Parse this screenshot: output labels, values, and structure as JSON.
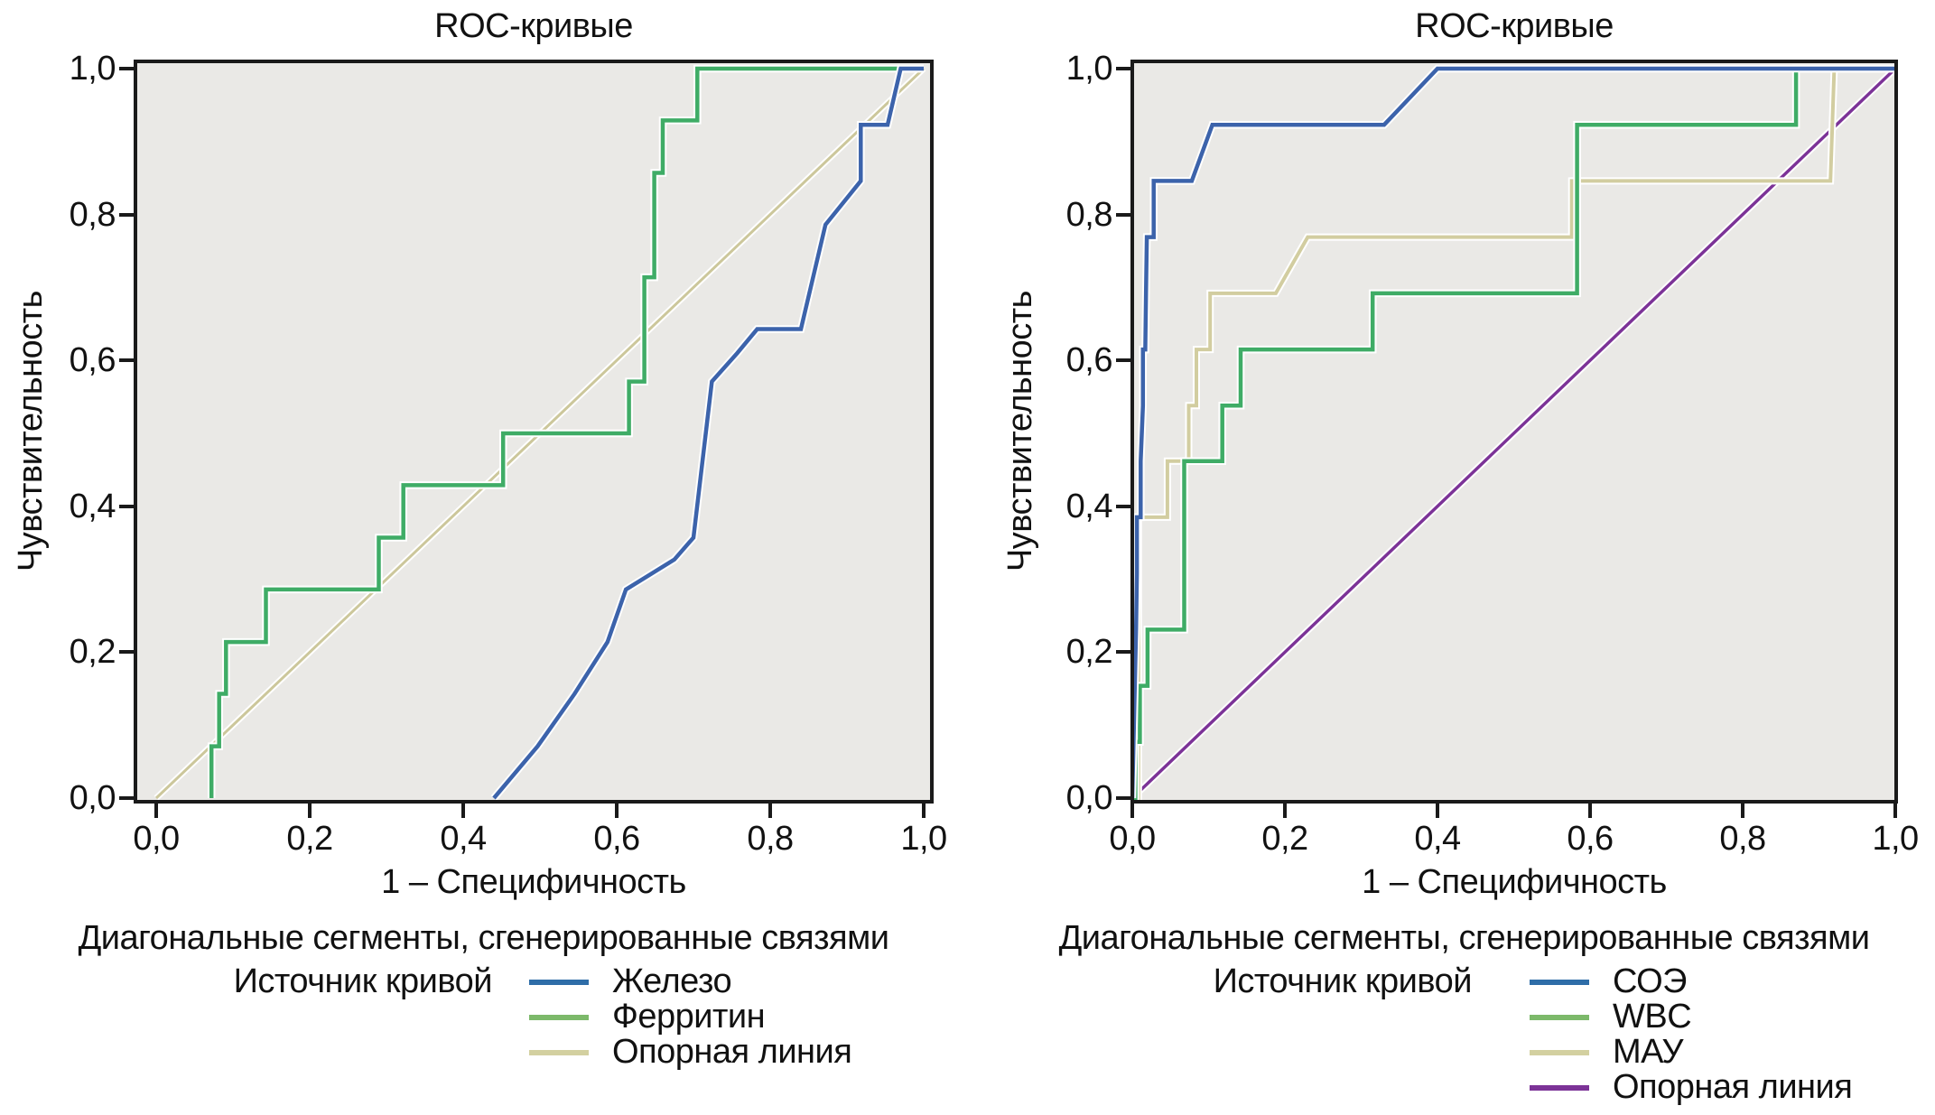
{
  "colors": {
    "page_background": "#FFFFFF",
    "plot_background": "#EAE9E6",
    "frame": "#1A1A1A",
    "text": "#111111",
    "curve_halo": "#FFFFFF"
  },
  "chart_data": [
    {
      "type": "line",
      "variant": "roc-curve",
      "title": "ROC-кривые",
      "xlabel": "1 – Специфичность",
      "ylabel": "Чувствительность",
      "caption": "Диагональные сегменты, сгенерированные связями",
      "legend_title": "Источник кривой",
      "legend_position": "bottom",
      "grid": false,
      "xlim": [
        0,
        1
      ],
      "ylim": [
        0,
        1
      ],
      "xticks": [
        "0,0",
        "0,2",
        "0,4",
        "0,6",
        "0,8",
        "1,0"
      ],
      "yticks": [
        "0,0",
        "0,2",
        "0,4",
        "0,6",
        "0,8",
        "1,0"
      ],
      "series": [
        {
          "name": "Железо",
          "color": "#3C63AB",
          "swatch": "#2E6DA8",
          "width": 4.5,
          "points": [
            [
              0.44,
              0
            ],
            [
              0.497,
              0.071
            ],
            [
              0.545,
              0.143
            ],
            [
              0.588,
              0.214
            ],
            [
              0.612,
              0.286
            ],
            [
              0.675,
              0.327
            ],
            [
              0.7,
              0.357
            ],
            [
              0.724,
              0.571
            ],
            [
              0.757,
              0.61
            ],
            [
              0.783,
              0.643
            ],
            [
              0.84,
              0.643
            ],
            [
              0.872,
              0.786
            ],
            [
              0.918,
              0.846
            ],
            [
              0.918,
              0.923
            ],
            [
              0.953,
              0.923
            ],
            [
              0.97,
              1
            ],
            [
              1,
              1
            ]
          ]
        },
        {
          "name": "Ферритин",
          "color": "#3FAC66",
          "swatch": "#7CB96A",
          "width": 4.5,
          "points": [
            [
              0.072,
              0
            ],
            [
              0.072,
              0.071
            ],
            [
              0.082,
              0.071
            ],
            [
              0.082,
              0.143
            ],
            [
              0.091,
              0.143
            ],
            [
              0.091,
              0.214
            ],
            [
              0.143,
              0.214
            ],
            [
              0.143,
              0.286
            ],
            [
              0.29,
              0.286
            ],
            [
              0.29,
              0.357
            ],
            [
              0.322,
              0.357
            ],
            [
              0.322,
              0.429
            ],
            [
              0.452,
              0.429
            ],
            [
              0.452,
              0.5
            ],
            [
              0.616,
              0.5
            ],
            [
              0.616,
              0.571
            ],
            [
              0.636,
              0.571
            ],
            [
              0.636,
              0.714
            ],
            [
              0.649,
              0.714
            ],
            [
              0.649,
              0.857
            ],
            [
              0.66,
              0.857
            ],
            [
              0.66,
              0.929
            ],
            [
              0.705,
              0.929
            ],
            [
              0.705,
              1
            ],
            [
              1,
              1
            ]
          ]
        },
        {
          "name": "Опорная линия",
          "color": "#CCC79B",
          "swatch": "#D3D0A0",
          "width": 3,
          "reference": true,
          "points": [
            [
              0,
              0
            ],
            [
              1,
              1
            ]
          ]
        }
      ]
    },
    {
      "type": "line",
      "variant": "roc-curve",
      "title": "ROC-кривые",
      "xlabel": "1 – Специфичность",
      "ylabel": "Чувствительность",
      "caption": "Диагональные сегменты, сгенерированные связями",
      "legend_title": "Источник кривой",
      "legend_position": "bottom",
      "grid": false,
      "xlim": [
        0,
        1
      ],
      "ylim": [
        0,
        1
      ],
      "xticks": [
        "0,0",
        "0,2",
        "0,4",
        "0,6",
        "0,8",
        "1,0"
      ],
      "yticks": [
        "0,0",
        "0,2",
        "0,4",
        "0,6",
        "0,8",
        "1,0"
      ],
      "series": [
        {
          "name": "СОЭ",
          "color": "#3C63AB",
          "swatch": "#2E6DA8",
          "width": 4.5,
          "points": [
            [
              0,
              0
            ],
            [
              0.005,
              0.231
            ],
            [
              0.006,
              0.308
            ],
            [
              0.006,
              0.385
            ],
            [
              0.011,
              0.385
            ],
            [
              0.011,
              0.462
            ],
            [
              0.014,
              0.538
            ],
            [
              0.014,
              0.615
            ],
            [
              0.017,
              0.615
            ],
            [
              0.018,
              0.692
            ],
            [
              0.019,
              0.769
            ],
            [
              0.028,
              0.769
            ],
            [
              0.028,
              0.846
            ],
            [
              0.078,
              0.846
            ],
            [
              0.105,
              0.923
            ],
            [
              0.33,
              0.923
            ],
            [
              0.4,
              1
            ],
            [
              1,
              1
            ]
          ]
        },
        {
          "name": "WBC",
          "color": "#3FAC66",
          "swatch": "#7CB96A",
          "width": 4.5,
          "points": [
            [
              0,
              0
            ],
            [
              0.004,
              0
            ],
            [
              0.004,
              0.077
            ],
            [
              0.01,
              0.077
            ],
            [
              0.01,
              0.154
            ],
            [
              0.02,
              0.154
            ],
            [
              0.02,
              0.231
            ],
            [
              0.068,
              0.231
            ],
            [
              0.068,
              0.462
            ],
            [
              0.118,
              0.462
            ],
            [
              0.118,
              0.538
            ],
            [
              0.142,
              0.538
            ],
            [
              0.142,
              0.615
            ],
            [
              0.315,
              0.615
            ],
            [
              0.315,
              0.692
            ],
            [
              0.583,
              0.692
            ],
            [
              0.583,
              0.923
            ],
            [
              0.87,
              0.923
            ],
            [
              0.87,
              1
            ],
            [
              1,
              1
            ]
          ]
        },
        {
          "name": "МАУ",
          "color": "#D2CDA0",
          "swatch": "#D3D0A0",
          "width": 4,
          "points": [
            [
              0,
              0
            ],
            [
              0.008,
              0
            ],
            [
              0.008,
              0.385
            ],
            [
              0.046,
              0.385
            ],
            [
              0.046,
              0.462
            ],
            [
              0.074,
              0.462
            ],
            [
              0.074,
              0.538
            ],
            [
              0.084,
              0.538
            ],
            [
              0.084,
              0.615
            ],
            [
              0.102,
              0.615
            ],
            [
              0.102,
              0.692
            ],
            [
              0.188,
              0.692
            ],
            [
              0.23,
              0.769
            ],
            [
              0.576,
              0.769
            ],
            [
              0.576,
              0.846
            ],
            [
              0.915,
              0.846
            ],
            [
              0.92,
              1
            ],
            [
              1,
              1
            ]
          ]
        },
        {
          "name": "Опорная линия",
          "color": "#7C3397",
          "swatch": "#7C3397",
          "width": 3.5,
          "reference": true,
          "points": [
            [
              0,
              0
            ],
            [
              1,
              1
            ]
          ]
        }
      ]
    }
  ]
}
